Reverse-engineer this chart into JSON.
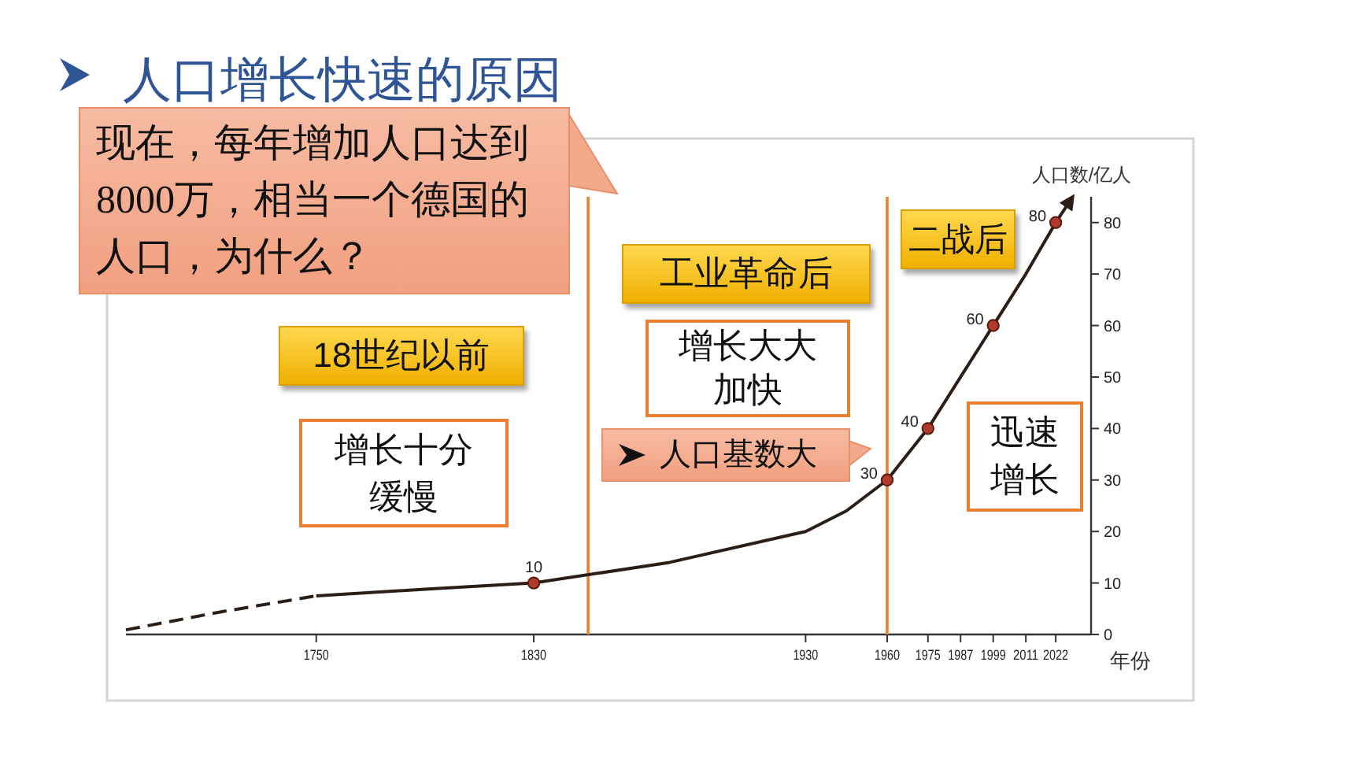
{
  "chart_data": {
    "type": "line",
    "title": "人口增长快速的原因",
    "xlabel": "年份",
    "ylabel": "人口数/亿人",
    "xlim": [
      1680,
      2035
    ],
    "xticks": [
      1750,
      1830,
      1930,
      1960,
      1975,
      1987,
      1999,
      2011,
      2022
    ],
    "ylim": [
      0,
      85
    ],
    "yticks": [
      0,
      10,
      20,
      30,
      40,
      50,
      60,
      70,
      80
    ],
    "series": [
      {
        "color": "#2b1d17",
        "line_style": "dashed",
        "x": [
          1680,
          1715,
          1750
        ],
        "values": [
          0.9,
          4.4,
          7.5
        ]
      },
      {
        "color": "#2b1d17",
        "line_style": "solid",
        "x": [
          1750,
          1790,
          1830,
          1880,
          1930,
          1945,
          1960,
          1975,
          1987,
          1999,
          2011,
          2022,
          2027
        ],
        "values": [
          7.5,
          8.8,
          10,
          14,
          20,
          24,
          30,
          40,
          50,
          60,
          70,
          80,
          84
        ]
      },
      {
        "type": "scatter",
        "color": "#b23a2a",
        "marker": "circle",
        "x": [
          1830,
          1960,
          1975,
          1999,
          2022
        ],
        "values": [
          10,
          30,
          40,
          60,
          80
        ],
        "value_labels": [
          "10",
          "30",
          "40",
          "60",
          "80"
        ]
      }
    ],
    "ref_lines": [
      {
        "axis": "x",
        "value": 1850,
        "color": "#ed7d31"
      },
      {
        "axis": "x",
        "value": 1960,
        "color": "#ed7d31"
      }
    ],
    "annotations": [
      "现在，每年增加人口达到8000万，相当一个德国的人口，为什么？",
      "18世纪以前",
      "增长十分缓慢",
      "工业革命后",
      "增长大大加快",
      "二战后",
      "迅速增长",
      "人口基数大"
    ]
  }
}
